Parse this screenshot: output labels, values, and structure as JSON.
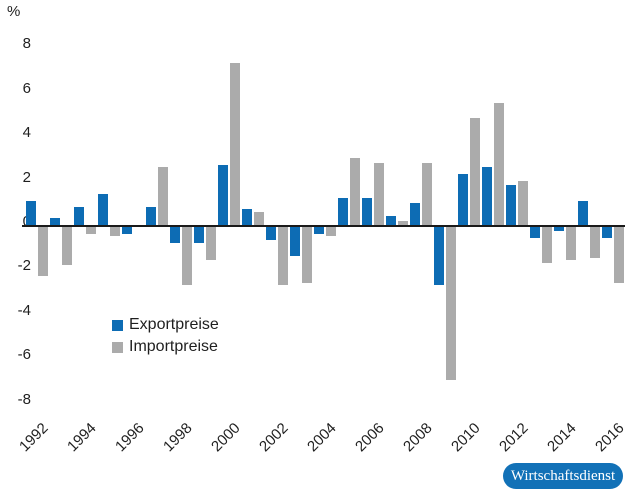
{
  "chart_data": {
    "type": "bar",
    "unit_label": "%",
    "categories": [
      1992,
      1993,
      1994,
      1995,
      1996,
      1997,
      1998,
      1999,
      2000,
      2001,
      2002,
      2003,
      2004,
      2005,
      2006,
      2007,
      2008,
      2009,
      2010,
      2011,
      2012,
      2013,
      2014,
      2015,
      2016
    ],
    "series": [
      {
        "name": "Exportpreise",
        "color": "#0d6cb4",
        "values": [
          1.1,
          0.3,
          0.8,
          1.4,
          -0.3,
          0.8,
          -0.7,
          -0.7,
          2.7,
          0.7,
          -0.6,
          -1.3,
          -0.3,
          1.2,
          1.2,
          0.4,
          1.0,
          -2.6,
          2.3,
          2.6,
          1.8,
          -0.5,
          -0.2,
          1.1,
          -0.5
        ]
      },
      {
        "name": "Importpreise",
        "color": "#ababab",
        "values": [
          -2.2,
          -1.7,
          -0.3,
          -0.4,
          0.0,
          2.6,
          -2.6,
          -1.5,
          7.3,
          0.6,
          -2.6,
          -2.5,
          -0.4,
          3.0,
          2.8,
          0.2,
          2.8,
          -6.9,
          4.8,
          5.5,
          2.0,
          -1.6,
          -1.5,
          -1.4,
          -2.5
        ]
      }
    ],
    "ylim": [
      -8,
      8
    ],
    "yticks": [
      8,
      6,
      4,
      2,
      0,
      -2,
      -4,
      -6,
      -8
    ],
    "xtick_labels": [
      "1992",
      "1994",
      "1996",
      "1998",
      "2000",
      "2002",
      "2004",
      "2006",
      "2008",
      "2010",
      "2012",
      "2014",
      "2016"
    ],
    "grid": false,
    "legend_position": "inside-bottom-left"
  },
  "source_badge": {
    "label": "Wirtschaftsdienst",
    "background": "#1271b7"
  }
}
